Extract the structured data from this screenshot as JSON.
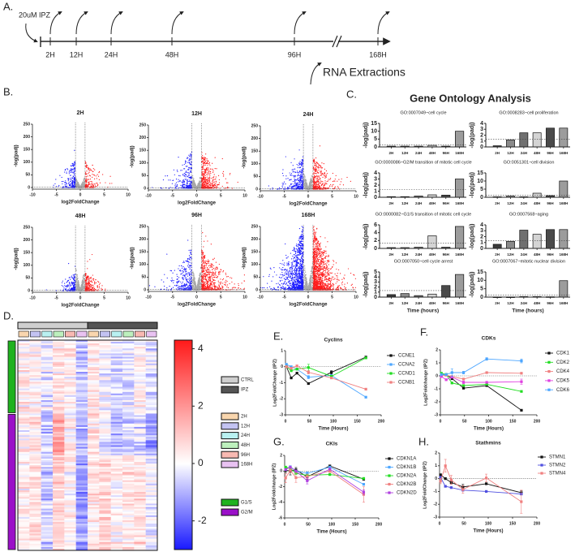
{
  "panel_labels": {
    "A": "A.",
    "B": "B.",
    "C": "C.",
    "D": "D.",
    "E": "E.",
    "F": "F.",
    "G": "G.",
    "H": "H."
  },
  "timeline": {
    "treatment": "20uM IPZ",
    "timepoints": [
      "2H",
      "12H",
      "24H",
      "48H",
      "96H",
      "168H"
    ],
    "hours": [
      2,
      12,
      24,
      48,
      96,
      168
    ],
    "extraction_label": "RNA Extractions"
  },
  "go_title": "Gene Ontology Analysis",
  "chart_data": [
    {
      "type": "scatter",
      "title": "2H",
      "xlabel": "log2FoldChange",
      "ylabel": "-log(padj)",
      "xlim": [
        -10,
        10
      ],
      "ylim": [
        0,
        250
      ],
      "xticks": [
        -10,
        -5,
        0,
        5,
        10
      ],
      "yticks": [
        0,
        50,
        100,
        150,
        200,
        250
      ],
      "fc_threshold": 1,
      "down_points": 220,
      "up_points": 160,
      "colors": {
        "down": "#1a1aff",
        "up": "#ff1a1a",
        "ns": "#a8a8a8"
      }
    },
    {
      "type": "scatter",
      "title": "12H",
      "xlabel": "log2FoldChange",
      "ylabel": "-log(padj)",
      "xlim": [
        -10,
        10
      ],
      "ylim": [
        0,
        250
      ],
      "xticks": [
        -10,
        -5,
        0,
        5,
        10
      ],
      "yticks": [
        0,
        50,
        100,
        150,
        200,
        250
      ],
      "fc_threshold": 1,
      "down_points": 260,
      "up_points": 420,
      "colors": {
        "down": "#1a1aff",
        "up": "#ff1a1a",
        "ns": "#a8a8a8"
      }
    },
    {
      "type": "scatter",
      "title": "24H",
      "xlabel": "log2FoldChange",
      "ylabel": "-log(padj)",
      "xlim": [
        -10,
        10
      ],
      "ylim": [
        0,
        250
      ],
      "xticks": [
        -10,
        -5,
        0,
        5,
        10
      ],
      "yticks": [
        0,
        50,
        100,
        150,
        200,
        250
      ],
      "fc_threshold": 1,
      "down_points": 330,
      "up_points": 380,
      "colors": {
        "down": "#1a1aff",
        "up": "#ff1a1a",
        "ns": "#a8a8a8"
      }
    },
    {
      "type": "scatter",
      "title": "48H",
      "xlabel": "log2FoldChange",
      "ylabel": "-log(padj)",
      "xlim": [
        -10,
        10
      ],
      "ylim": [
        0,
        250
      ],
      "xticks": [
        -10,
        -5,
        0,
        5,
        10
      ],
      "yticks": [
        0,
        50,
        100,
        150,
        200,
        250
      ],
      "fc_threshold": 1,
      "down_points": 180,
      "up_points": 260,
      "colors": {
        "down": "#1a1aff",
        "up": "#ff1a1a",
        "ns": "#a8a8a8"
      }
    },
    {
      "type": "scatter",
      "title": "96H",
      "xlabel": "log2FoldChange",
      "ylabel": "-log(padj)",
      "xlim": [
        -10,
        10
      ],
      "ylim": [
        0,
        250
      ],
      "xticks": [
        -10,
        -5,
        0,
        5,
        10
      ],
      "yticks": [
        0,
        50,
        100,
        150,
        200,
        250
      ],
      "fc_threshold": 1,
      "down_points": 300,
      "up_points": 600,
      "colors": {
        "down": "#1a1aff",
        "up": "#ff1a1a",
        "ns": "#a8a8a8"
      }
    },
    {
      "type": "scatter",
      "title": "168H",
      "xlabel": "log2FoldChange",
      "ylabel": "-log(padj)",
      "xlim": [
        -10,
        10
      ],
      "ylim": [
        0,
        250
      ],
      "xticks": [
        -10,
        -5,
        0,
        5,
        10
      ],
      "yticks": [
        0,
        50,
        100,
        150,
        200,
        250
      ],
      "fc_threshold": 1,
      "down_points": 1100,
      "up_points": 1300,
      "colors": {
        "down": "#1a1aff",
        "up": "#ff1a1a",
        "ns": "#a8a8a8"
      }
    },
    {
      "type": "bar",
      "title": "GO:0007049~cell cycle",
      "categories": [
        "2H",
        "12H",
        "24H",
        "48H",
        "96H",
        "168H"
      ],
      "values": [
        0.5,
        0.5,
        0.5,
        1.0,
        0.5,
        10
      ],
      "ylabel": "-log(padj)",
      "xlabel": "",
      "ylim": [
        0,
        15
      ],
      "yticks": [
        0,
        5,
        10,
        15
      ],
      "threshold": 1.3
    },
    {
      "type": "bar",
      "title": "GO:0008283~cell proliferation",
      "categories": [
        "2H",
        "12H",
        "24H",
        "48H",
        "96H",
        "168H"
      ],
      "values": [
        0.2,
        1.2,
        2.4,
        2.4,
        3.2,
        3.2
      ],
      "ylabel": "-log(padj)",
      "xlabel": "",
      "ylim": [
        0,
        4
      ],
      "yticks": [
        0,
        1,
        2,
        3,
        4
      ],
      "threshold": 1.3
    },
    {
      "type": "bar",
      "title": "GO:0000086~G2/M transition of mitotic cell cycle",
      "categories": [
        "2H",
        "12H",
        "24H",
        "48H",
        "96H",
        "168H"
      ],
      "values": [
        0.1,
        0.1,
        0.2,
        0.4,
        0.35,
        3.0
      ],
      "ylabel": "-log(padj)",
      "xlabel": "",
      "ylim": [
        0,
        4
      ],
      "yticks": [
        0,
        1,
        2,
        3,
        4
      ],
      "threshold": 1.3
    },
    {
      "type": "bar",
      "title": "GO:0051301~cell division",
      "categories": [
        "2H",
        "12H",
        "24H",
        "48H",
        "96H",
        "168H"
      ],
      "values": [
        0.3,
        0.7,
        0.3,
        2.5,
        1.0,
        10
      ],
      "ylabel": "-log(padj)",
      "xlabel": "",
      "ylim": [
        0,
        15
      ],
      "yticks": [
        0,
        5,
        10,
        15
      ],
      "threshold": 1.3
    },
    {
      "type": "bar",
      "title": "GO:0000082~G1/S transition of mitotic cell cycle",
      "categories": [
        "2H",
        "12H",
        "24H",
        "48H",
        "96H",
        "168H"
      ],
      "values": [
        0.2,
        0.2,
        0.3,
        3.2,
        0.3,
        5.6
      ],
      "ylabel": "-log(padj)",
      "xlabel": "",
      "ylim": [
        0,
        6
      ],
      "yticks": [
        0,
        2,
        4,
        6
      ],
      "threshold": 1.3
    },
    {
      "type": "bar",
      "title": "GO:0007568~aging",
      "categories": [
        "2H",
        "12H",
        "24H",
        "48H",
        "96H",
        "168H"
      ],
      "values": [
        0.7,
        1.2,
        3.1,
        2.4,
        3.2,
        3.2
      ],
      "ylabel": "-log(padj)",
      "xlabel": "",
      "ylim": [
        0,
        4
      ],
      "yticks": [
        0,
        1,
        2,
        3,
        4
      ],
      "threshold": 1.3
    },
    {
      "type": "bar",
      "title": "GO:0007050~cell cycle arrest",
      "categories": [
        "2H",
        "12H",
        "24H",
        "48H",
        "96H",
        "168H"
      ],
      "values": [
        0.5,
        0.7,
        0.3,
        0.6,
        2.3,
        4.5
      ],
      "ylabel": "-log(padj)",
      "xlabel": "Time (hours)",
      "ylim": [
        0,
        5
      ],
      "yticks": [
        0,
        1,
        2,
        3,
        4,
        5
      ],
      "threshold": 1.3
    },
    {
      "type": "bar",
      "title": "GO:0007067~mitotic nuclear division",
      "categories": [
        "2H",
        "12H",
        "24H",
        "48H",
        "96H",
        "168H"
      ],
      "values": [
        0.1,
        0.1,
        0.3,
        0.3,
        0.2,
        9.8
      ],
      "ylabel": "-log(padj)",
      "xlabel": "Time (hours)",
      "ylim": [
        0,
        15
      ],
      "yticks": [
        0,
        5,
        10,
        15
      ],
      "threshold": 1.3
    },
    {
      "type": "heatmap",
      "range": [
        -3,
        4.3
      ],
      "colorbar_ticks": [
        4,
        2,
        0,
        -2
      ],
      "groups": [
        {
          "name": "CTRL",
          "color": "#cfcfcf"
        },
        {
          "name": "IPZ",
          "color": "#555555"
        }
      ],
      "timepoints": [
        {
          "name": "2H",
          "color": "#f9d6ae"
        },
        {
          "name": "12H",
          "color": "#c3c3f2"
        },
        {
          "name": "24H",
          "color": "#b9f1f1"
        },
        {
          "name": "48H",
          "color": "#bdf0bd"
        },
        {
          "name": "96H",
          "color": "#f8b9b2"
        },
        {
          "name": "168H",
          "color": "#e9c2f2"
        }
      ],
      "clusters": [
        {
          "name": "G1/S",
          "color": "#1fb21f",
          "rows": 44,
          "column_means": [
            0.3,
            0.2,
            -0.2,
            0.3,
            0.2,
            -0.6,
            0.3,
            -0.1,
            -0.4,
            -0.3,
            0.1,
            -0.3
          ]
        },
        {
          "name": "G2/M",
          "color": "#9a10c8",
          "rows": 82,
          "column_means": [
            0.2,
            0.4,
            -0.5,
            0.6,
            0.1,
            -1.0,
            0.4,
            0.6,
            0.2,
            0.4,
            0.5,
            -0.1
          ]
        }
      ]
    },
    {
      "type": "line",
      "title": "Cyclins",
      "xlabel": "Time (Hours)",
      "ylabel": "Log2FoldChange (IPZ)",
      "xlim": [
        0,
        200
      ],
      "ylim": [
        -3,
        1
      ],
      "xticks": [
        0,
        50,
        100,
        150,
        200
      ],
      "yticks": [
        1,
        0,
        -1,
        -2,
        -3
      ],
      "series": [
        {
          "name": "CCNE1",
          "color": "#111111",
          "x": [
            2,
            12,
            24,
            48,
            96,
            168
          ],
          "y": [
            0.0,
            -0.7,
            -0.4,
            -1.05,
            -0.35,
            0.6
          ],
          "err": [
            0.05,
            0.05,
            0.05,
            0.05,
            0.1,
            0.05
          ]
        },
        {
          "name": "CCNA2",
          "color": "#4da6ff",
          "x": [
            2,
            12,
            24,
            48,
            96,
            168
          ],
          "y": [
            0.15,
            0.0,
            -0.15,
            -0.65,
            -0.55,
            -1.9
          ],
          "err": [
            0.05,
            0.05,
            0.05,
            0.1,
            0.05,
            0.05
          ]
        },
        {
          "name": "CCND1",
          "color": "#22dd22",
          "x": [
            2,
            12,
            24,
            48,
            96,
            168
          ],
          "y": [
            0.0,
            -0.25,
            -0.15,
            -0.05,
            -0.6,
            0.55
          ],
          "err": [
            0.05,
            0.05,
            0.05,
            0.2,
            0.05,
            0.05
          ]
        },
        {
          "name": "CCNB1",
          "color": "#f08080",
          "x": [
            2,
            12,
            24,
            48,
            96,
            168
          ],
          "y": [
            0.0,
            -0.1,
            0.05,
            -0.35,
            -0.7,
            -1.4
          ],
          "err": [
            0.05,
            0.05,
            0.05,
            0.1,
            0.05,
            0.05
          ]
        }
      ]
    },
    {
      "type": "line",
      "title": "CDKs",
      "xlabel": "Time (Hours)",
      "ylabel": "Log2Foldchange (IPZ)",
      "xlim": [
        0,
        200
      ],
      "ylim": [
        -3,
        2
      ],
      "xticks": [
        0,
        50,
        100,
        150,
        200
      ],
      "yticks": [
        2,
        1,
        0,
        -1,
        -2,
        -3
      ],
      "series": [
        {
          "name": "CDK1",
          "color": "#111111",
          "x": [
            2,
            12,
            24,
            48,
            96,
            168
          ],
          "y": [
            0.1,
            0.1,
            -0.2,
            -0.95,
            -0.75,
            -2.65
          ],
          "err": [
            0.05,
            0.05,
            0.1,
            0.05,
            0.05,
            0.05
          ]
        },
        {
          "name": "CDK2",
          "color": "#22dd22",
          "x": [
            2,
            12,
            24,
            48,
            96,
            168
          ],
          "y": [
            0.2,
            0.1,
            -0.55,
            -0.75,
            -0.65,
            -1.2
          ],
          "err": [
            0.05,
            0.05,
            0.05,
            0.05,
            0.05,
            0.05
          ]
        },
        {
          "name": "CDK4",
          "color": "#f08080",
          "x": [
            2,
            12,
            24,
            48,
            96,
            168
          ],
          "y": [
            0.0,
            0.05,
            -0.05,
            -0.25,
            0.25,
            0.2
          ],
          "err": [
            0.05,
            0.05,
            0.05,
            0.05,
            0.05,
            0.05
          ]
        },
        {
          "name": "CDK5",
          "color": "#e040e0",
          "x": [
            2,
            12,
            24,
            48,
            96,
            168
          ],
          "y": [
            -0.05,
            -0.3,
            -0.1,
            -0.5,
            -0.5,
            -0.45
          ],
          "err": [
            0.05,
            0.05,
            0.05,
            0.1,
            0.05,
            0.2
          ]
        },
        {
          "name": "CDK6",
          "color": "#4da6ff",
          "x": [
            2,
            12,
            24,
            48,
            96,
            168
          ],
          "y": [
            0.1,
            0.1,
            0.25,
            0.25,
            1.3,
            1.15
          ],
          "err": [
            0.05,
            0.05,
            0.3,
            0.1,
            0.1,
            0.15
          ]
        }
      ]
    },
    {
      "type": "line",
      "title": "CKIs",
      "xlabel": "Time (Hours)",
      "ylabel": "Log2Foldchange (IPZ)",
      "xlim": [
        0,
        200
      ],
      "ylim": [
        -6,
        2
      ],
      "xticks": [
        0,
        50,
        100,
        150,
        200
      ],
      "yticks": [
        2,
        0,
        -2,
        -4,
        -6
      ],
      "series": [
        {
          "name": "CDKN1A",
          "color": "#111111",
          "x": [
            2,
            12,
            24,
            48,
            96,
            168
          ],
          "y": [
            0.1,
            0.0,
            0.15,
            -0.75,
            0.65,
            -1.05
          ],
          "err": [
            0.3,
            0.5,
            0.3,
            0.3,
            0.1,
            0.1
          ]
        },
        {
          "name": "CDKN1B",
          "color": "#4da6ff",
          "x": [
            2,
            12,
            24,
            48,
            96,
            168
          ],
          "y": [
            0.2,
            0.55,
            0.0,
            -0.3,
            0.5,
            -1.7
          ],
          "err": [
            0.1,
            0.1,
            0.1,
            0.2,
            0.1,
            0.1
          ]
        },
        {
          "name": "CDKN2A",
          "color": "#22dd22",
          "x": [
            2,
            12,
            24,
            48,
            96,
            168
          ],
          "y": [
            0.5,
            0.35,
            -0.3,
            -0.55,
            -0.45,
            -0.95
          ],
          "err": [
            0.1,
            0.1,
            0.1,
            0.1,
            0.1,
            0.1
          ]
        },
        {
          "name": "CDKN2B",
          "color": "#f08080",
          "x": [
            2,
            12,
            24,
            48,
            96,
            168
          ],
          "y": [
            -0.9,
            0.1,
            -0.85,
            -0.7,
            0.0,
            -3.0
          ],
          "err": [
            0.6,
            0.3,
            0.6,
            0.3,
            0.2,
            1.0
          ]
        },
        {
          "name": "CDKN2D",
          "color": "#b040e0",
          "x": [
            2,
            12,
            24,
            48,
            96,
            168
          ],
          "y": [
            0.2,
            0.5,
            0.0,
            -1.25,
            0.25,
            -2.7
          ],
          "err": [
            0.1,
            0.1,
            0.1,
            0.4,
            0.1,
            0.3
          ]
        }
      ]
    },
    {
      "type": "line",
      "title": "Stathmins",
      "xlabel": "Time (Hours)",
      "ylabel": "Log2FoldChange (IPZ)",
      "xlim": [
        0,
        200
      ],
      "ylim": [
        -3,
        2
      ],
      "xticks": [
        0,
        50,
        100,
        150,
        200
      ],
      "yticks": [
        2,
        1,
        0,
        -1,
        -2,
        -3
      ],
      "series": [
        {
          "name": "STMN1",
          "color": "#111111",
          "x": [
            2,
            12,
            24,
            48,
            96,
            168
          ],
          "y": [
            0.3,
            0.0,
            -0.3,
            -0.65,
            -0.4,
            -1.1
          ],
          "err": [
            0.05,
            0.05,
            0.1,
            0.2,
            0.05,
            0.15
          ]
        },
        {
          "name": "STMN2",
          "color": "#5050e0",
          "x": [
            2,
            12,
            24,
            48,
            96,
            168
          ],
          "y": [
            0.1,
            -0.6,
            -0.7,
            -0.9,
            -1.0,
            -1.2
          ],
          "err": [
            0.05,
            0.05,
            0.05,
            0.05,
            0.05,
            0.05
          ]
        },
        {
          "name": "STMN4",
          "color": "#f08080",
          "x": [
            2,
            12,
            24,
            48,
            96,
            168
          ],
          "y": [
            -0.2,
            1.0,
            -0.1,
            -0.85,
            0.05,
            -1.8
          ],
          "err": [
            0.2,
            0.5,
            0.35,
            0.3,
            0.3,
            0.9
          ]
        }
      ]
    }
  ]
}
